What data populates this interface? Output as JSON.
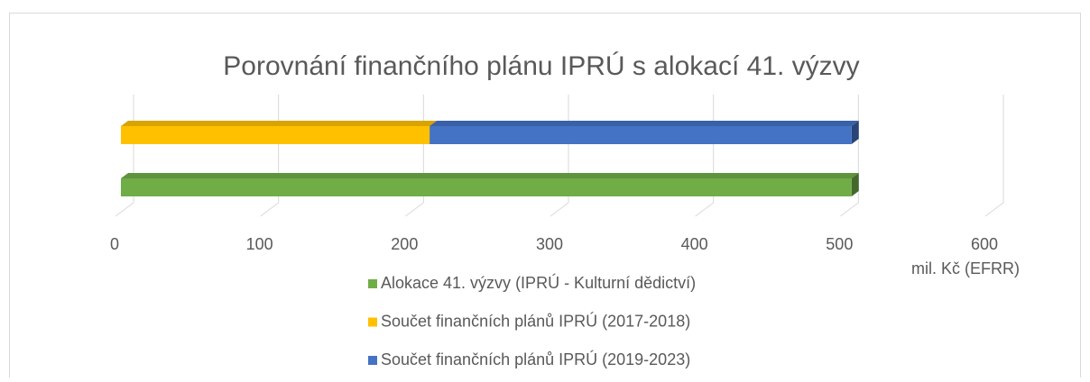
{
  "chart_data": {
    "type": "bar3d_stacked_horizontal",
    "title": "Porovnání finančního plánu IPRÚ s alokací 41. výzvy",
    "xlabel": "mil. Kč (EFRR)",
    "categories": [
      null,
      null
    ],
    "series": [
      {
        "name": "Alokace 41. výzvy (IPRÚ - Kulturní dědictví)",
        "color": "#70ad47",
        "values": [
          504,
          null
        ]
      },
      {
        "name": "Součet finančních plánů IPRÚ (2017-2018)",
        "color": "#ffc000",
        "values": [
          null,
          213
        ]
      },
      {
        "name": "Součet finančních plánů IPRÚ (2019-2023)",
        "color": "#4472c4",
        "values": [
          null,
          291
        ]
      }
    ],
    "xlim": [
      0,
      600
    ],
    "xticks": [
      0,
      100,
      200,
      300,
      400,
      500,
      600
    ],
    "grid": true
  }
}
